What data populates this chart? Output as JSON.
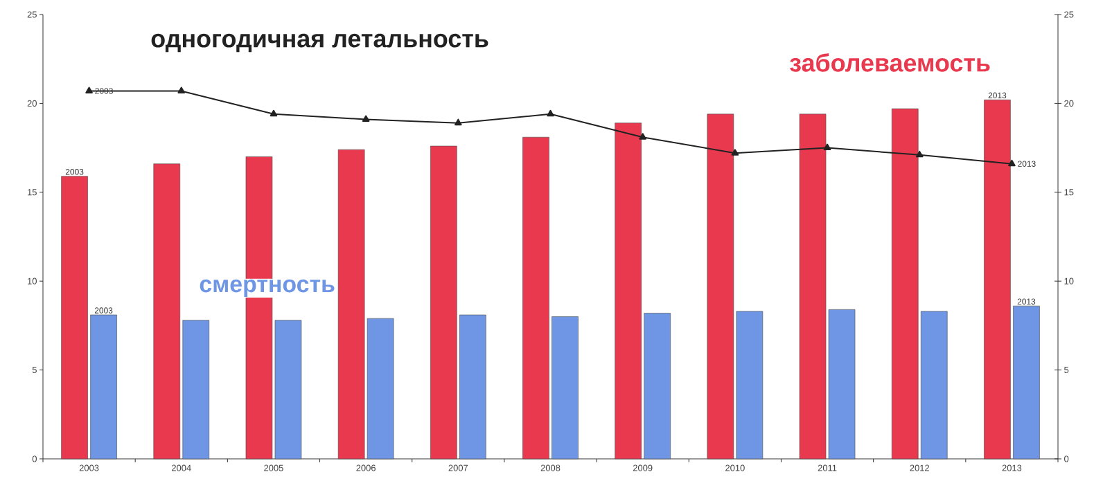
{
  "chart_data": {
    "type": "bar",
    "categories": [
      "2003",
      "2004",
      "2005",
      "2006",
      "2007",
      "2008",
      "2009",
      "2010",
      "2011",
      "2012",
      "2013"
    ],
    "series": [
      {
        "name": "заболеваемость",
        "color": "#e8394f",
        "values": [
          15.9,
          16.6,
          17.0,
          17.4,
          17.6,
          18.1,
          18.9,
          19.4,
          19.4,
          19.7,
          20.2
        ]
      },
      {
        "name": "смертность",
        "color": "#6f96e4",
        "values": [
          8.1,
          7.8,
          7.8,
          7.9,
          8.1,
          8.0,
          8.2,
          8.3,
          8.4,
          8.3,
          8.6
        ]
      },
      {
        "name": "одногодичная летальность",
        "type": "line",
        "axis": "y2",
        "color": "#222222",
        "marker": "triangle",
        "values": [
          20.7,
          20.7,
          19.4,
          19.1,
          18.9,
          19.4,
          18.1,
          17.2,
          17.5,
          17.1,
          16.6
        ]
      }
    ],
    "ylim": [
      0,
      25
    ],
    "yticks": [
      0,
      5,
      10,
      15,
      20,
      25
    ],
    "y2lim": [
      0,
      25
    ],
    "y2ticks": [
      0,
      5,
      10,
      15,
      20,
      25
    ],
    "annotations": [
      {
        "text": "2003",
        "x": "2003",
        "y": 15.9
      },
      {
        "text": "2013",
        "x": "2013",
        "y": 20.2
      },
      {
        "text": "2003",
        "x": "2003",
        "y": 8.1
      },
      {
        "text": "2013",
        "x": "2013",
        "y": 8.6
      },
      {
        "text": "2003",
        "x": "2003",
        "y": 20.7
      },
      {
        "text": "2013",
        "x": "2013",
        "y": 16.6
      }
    ]
  }
}
